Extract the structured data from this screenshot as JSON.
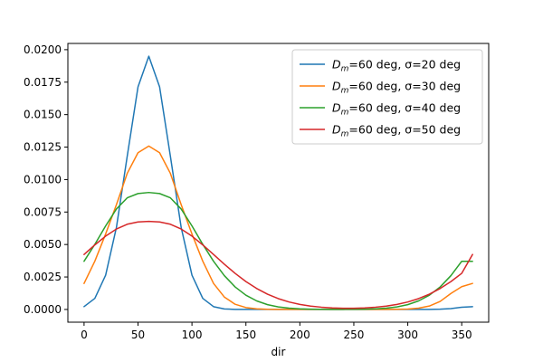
{
  "chart_data": {
    "type": "line",
    "title": "",
    "xlabel": "dir",
    "ylabel": "",
    "xlim": [
      -15,
      375
    ],
    "ylim": [
      -0.00098,
      0.02048
    ],
    "xticks": [
      0,
      50,
      100,
      150,
      200,
      250,
      300,
      350
    ],
    "xtick_labels": [
      "0",
      "50",
      "100",
      "150",
      "200",
      "250",
      "300",
      "350"
    ],
    "yticks": [
      0,
      0.0025,
      0.005,
      0.0075,
      0.01,
      0.0125,
      0.015,
      0.0175,
      0.02
    ],
    "ytick_labels": [
      "0.0000",
      "0.0025",
      "0.0050",
      "0.0075",
      "0.0100",
      "0.0125",
      "0.0150",
      "0.0175",
      "0.0200"
    ],
    "grid": false,
    "legend_position": "top-right",
    "x": [
      0,
      10,
      20,
      30,
      40,
      50,
      60,
      70,
      80,
      90,
      100,
      110,
      120,
      130,
      140,
      150,
      160,
      170,
      180,
      190,
      200,
      210,
      220,
      230,
      240,
      250,
      260,
      270,
      280,
      290,
      300,
      310,
      320,
      330,
      340,
      350,
      360
    ],
    "series": [
      {
        "name_prefix": "D",
        "name_sub": "m",
        "name_suffix": "=60 deg, σ=20 deg",
        "color": "#1f77b4",
        "values": [
          0.000216,
          0.000855,
          0.002636,
          0.00632,
          0.011796,
          0.017139,
          0.019496,
          0.017139,
          0.011796,
          0.00632,
          0.002636,
          0.000855,
          0.000216,
          4.2e-05,
          7e-06,
          1e-06,
          0,
          0,
          0,
          0,
          0,
          0,
          0,
          0,
          0,
          0,
          0,
          0,
          0,
          0,
          0,
          1e-06,
          4e-06,
          1.8e-05,
          6.3e-05,
          0.000169,
          0.000216
        ]
      },
      {
        "name_prefix": "D",
        "name_sub": "m",
        "name_suffix": "=60 deg, σ=30 deg",
        "color": "#ff7f0e",
        "values": [
          0.002004,
          0.00372,
          0.00581,
          0.008067,
          0.010475,
          0.012066,
          0.012584,
          0.012066,
          0.010475,
          0.008067,
          0.00581,
          0.00372,
          0.002004,
          0.000958,
          0.0004,
          0.000146,
          4.6e-05,
          1.3e-05,
          3e-06,
          1e-06,
          0,
          0,
          0,
          0,
          0,
          0,
          0,
          1e-06,
          3e-06,
          1e-05,
          3.4e-05,
          0.000101,
          0.000265,
          0.000617,
          0.001233,
          0.001755,
          0.002004
        ]
      },
      {
        "name_prefix": "D",
        "name_sub": "m",
        "name_suffix": "=60 deg, σ=40 deg",
        "color": "#2ca02c",
        "values": [
          0.00371,
          0.005015,
          0.006432,
          0.007733,
          0.008594,
          0.008922,
          0.009005,
          0.008922,
          0.008594,
          0.007733,
          0.006432,
          0.005015,
          0.00371,
          0.002605,
          0.001734,
          0.001096,
          0.000656,
          0.000371,
          0.000199,
          0.000101,
          4.9e-05,
          2.3e-05,
          1.2e-05,
          8e-06,
          8e-06,
          1.2e-05,
          2.3e-05,
          4.9e-05,
          0.000101,
          0.000199,
          0.000371,
          0.000656,
          0.001096,
          0.001734,
          0.002605,
          0.00371,
          0.00371
        ]
      },
      {
        "name_prefix": "D",
        "name_sub": "m",
        "name_suffix": "=60 deg, σ=50 deg",
        "color": "#d62728",
        "values": [
          0.004232,
          0.004969,
          0.005645,
          0.00619,
          0.006561,
          0.006738,
          0.00678,
          0.006738,
          0.006561,
          0.00619,
          0.005645,
          0.004969,
          0.004232,
          0.003484,
          0.002779,
          0.002148,
          0.001612,
          0.001175,
          0.000833,
          0.000576,
          0.000389,
          0.000259,
          0.000174,
          0.000121,
          9.4e-05,
          9.4e-05,
          0.000121,
          0.000174,
          0.000259,
          0.000389,
          0.000576,
          0.000833,
          0.001175,
          0.001612,
          0.002148,
          0.002779,
          0.004232
        ]
      }
    ]
  }
}
